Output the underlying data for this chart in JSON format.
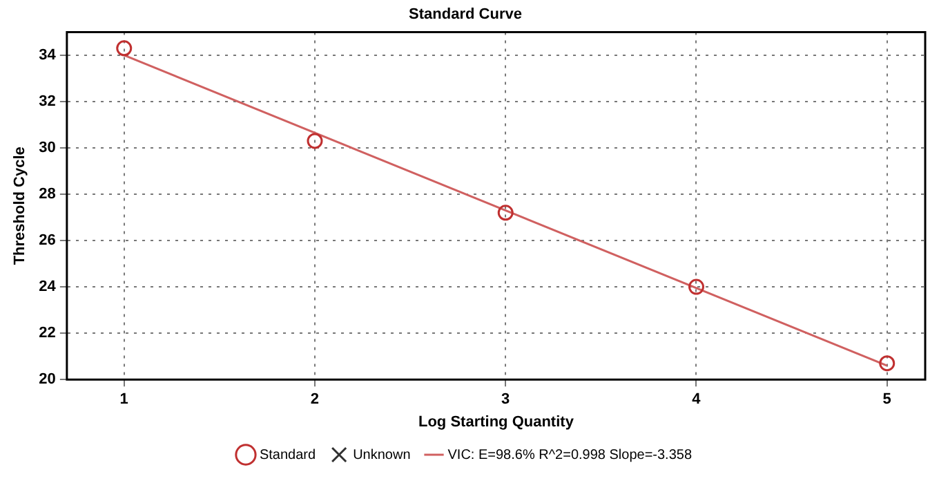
{
  "chart_data": {
    "type": "scatter",
    "title": "Standard Curve",
    "xlabel": "Log Starting Quantity",
    "ylabel": "Threshold Cycle",
    "xlim": [
      0.7,
      5.2
    ],
    "xticks": [
      1,
      2,
      3,
      4,
      5
    ],
    "ylim": [
      20,
      35
    ],
    "yticks": [
      20,
      22,
      24,
      26,
      28,
      30,
      32,
      34
    ],
    "grid": true,
    "legend": "bottom",
    "series": [
      {
        "name": "Standard",
        "color": "#c03030",
        "marker": "circle",
        "x": [
          1,
          2,
          3,
          4,
          5
        ],
        "values": [
          34.3,
          30.3,
          27.2,
          24.0,
          20.7
        ]
      },
      {
        "name": "Unknown",
        "color": "#303030",
        "marker": "cross"
      },
      {
        "name": "VIC: E=98.6% R^2=0.998 Slope=-3.358",
        "type": "line",
        "color": "#d06060",
        "marker": "none",
        "x": [
          1,
          5
        ],
        "values": [
          34.0,
          20.6
        ]
      }
    ]
  }
}
